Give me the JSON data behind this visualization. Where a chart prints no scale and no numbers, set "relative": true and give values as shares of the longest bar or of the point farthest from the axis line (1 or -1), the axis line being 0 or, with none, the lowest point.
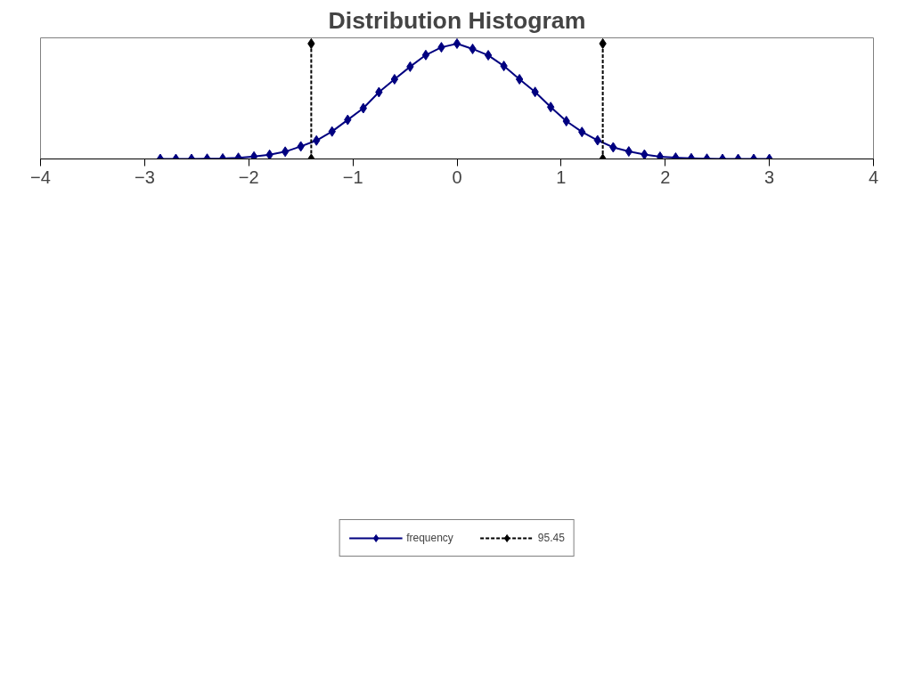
{
  "chart_data": {
    "type": "line",
    "title": "Distribution Histogram",
    "relative": true,
    "xlim": [
      -4,
      4
    ],
    "xticks": [
      -4,
      -3,
      -2,
      -1,
      0,
      1,
      2,
      3,
      4
    ],
    "tick_labels": "x",
    "grid": false,
    "legend": "bottom",
    "marker": "diamond",
    "series": [
      {
        "name": "frequency",
        "color": "#000080",
        "line_style": "solid",
        "x": [
          -2.85,
          -2.7,
          -2.55,
          -2.4,
          -2.25,
          -2.1,
          -1.95,
          -1.8,
          -1.65,
          -1.5,
          -1.35,
          -1.2,
          -1.05,
          -0.9,
          -0.75,
          -0.6,
          -0.45,
          -0.3,
          -0.15,
          0,
          0.15,
          0.3,
          0.45,
          0.6,
          0.75,
          0.9,
          1.05,
          1.2,
          1.35,
          1.5,
          1.65,
          1.8,
          1.95,
          2.1,
          2.25,
          2.4,
          2.55,
          2.7,
          2.85,
          3.0
        ],
        "values": [
          0,
          0,
          0,
          0.002,
          0.004,
          0.01,
          0.021,
          0.036,
          0.063,
          0.109,
          0.16,
          0.238,
          0.339,
          0.44,
          0.579,
          0.691,
          0.8,
          0.901,
          0.968,
          1,
          0.954,
          0.899,
          0.806,
          0.691,
          0.581,
          0.45,
          0.328,
          0.234,
          0.162,
          0.101,
          0.065,
          0.038,
          0.019,
          0.011,
          0.006,
          0.002,
          0,
          0,
          0,
          0
        ]
      },
      {
        "name": "95.45",
        "color": "#000000",
        "line_style": "dashed",
        "x": [
          -1.4,
          -1.4,
          0,
          1.4,
          1.4
        ],
        "values": [
          0,
          1,
          null,
          1,
          0
        ]
      }
    ]
  }
}
